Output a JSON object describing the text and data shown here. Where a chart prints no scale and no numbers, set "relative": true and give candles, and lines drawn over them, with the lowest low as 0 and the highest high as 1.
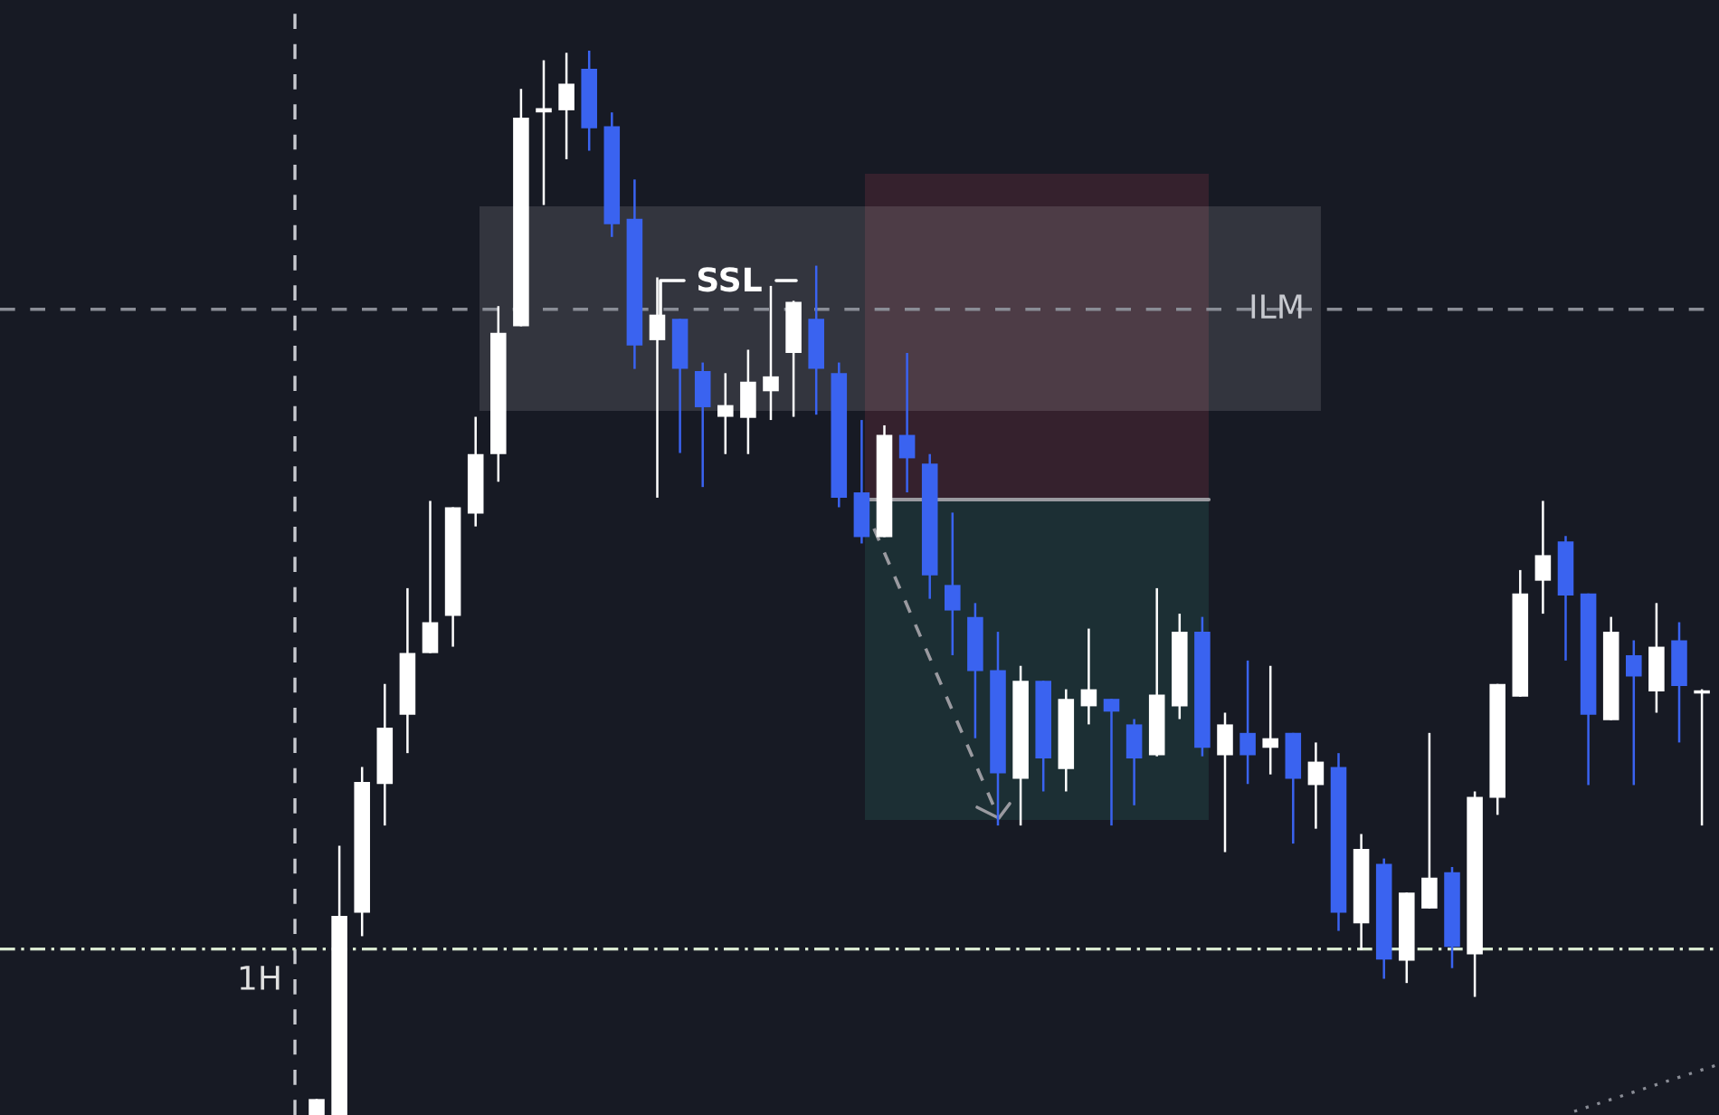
{
  "chart_data": {
    "type": "candlestick",
    "relative": true,
    "categories": [
      null,
      null,
      null,
      null,
      null,
      null,
      null,
      null,
      null,
      null,
      null,
      null,
      null,
      null,
      null,
      null,
      null,
      null,
      null,
      null,
      null,
      null,
      null,
      null,
      null,
      null,
      null,
      null,
      null,
      null,
      null,
      null,
      null,
      null,
      null,
      null,
      null,
      null,
      null,
      null,
      null,
      null,
      null,
      null,
      null,
      null,
      null,
      null,
      null,
      null,
      null,
      null,
      null,
      null,
      null,
      null,
      null,
      null,
      null,
      null,
      null,
      null
    ],
    "ohlc": [
      [
        0,
        0.015,
        0,
        0.015
      ],
      [
        0,
        0.253,
        0,
        0.187
      ],
      [
        0.19,
        0.327,
        0.168,
        0.313
      ],
      [
        0.311,
        0.405,
        0.272,
        0.364
      ],
      [
        0.376,
        0.495,
        0.34,
        0.434
      ],
      [
        0.434,
        0.577,
        0.434,
        0.463
      ],
      [
        0.469,
        0.571,
        0.44,
        0.571
      ],
      [
        0.565,
        0.656,
        0.553,
        0.621
      ],
      [
        0.621,
        0.76,
        0.595,
        0.735
      ],
      [
        0.741,
        0.964,
        0.741,
        0.937
      ],
      [
        0.942,
        0.991,
        0.855,
        0.946
      ],
      [
        0.944,
        0.998,
        0.898,
        0.969
      ],
      [
        0.983,
        1.0,
        0.906,
        0.927
      ],
      [
        0.929,
        0.942,
        0.825,
        0.837
      ],
      [
        0.842,
        0.879,
        0.701,
        0.723
      ],
      [
        0.728,
        0.787,
        0.58,
        0.752
      ],
      [
        0.748,
        0.748,
        0.622,
        0.701
      ],
      [
        0.699,
        0.707,
        0.59,
        0.665
      ],
      [
        0.656,
        0.697,
        0.621,
        0.667
      ],
      [
        0.655,
        0.719,
        0.621,
        0.689
      ],
      [
        0.68,
        0.779,
        0.653,
        0.694
      ],
      [
        0.716,
        0.765,
        0.656,
        0.764
      ],
      [
        0.748,
        0.798,
        0.658,
        0.701
      ],
      [
        0.697,
        0.707,
        0.571,
        0.58
      ],
      [
        0.585,
        0.653,
        0.537,
        0.543
      ],
      [
        0.543,
        0.648,
        0.543,
        0.639
      ],
      [
        0.639,
        0.716,
        0.585,
        0.617
      ],
      [
        0.612,
        0.621,
        0.485,
        0.507
      ],
      [
        0.498,
        0.566,
        0.432,
        0.474
      ],
      [
        0.468,
        0.481,
        0.354,
        0.417
      ],
      [
        0.418,
        0.454,
        0.272,
        0.321
      ],
      [
        0.316,
        0.422,
        0.272,
        0.408
      ],
      [
        0.408,
        0.408,
        0.304,
        0.335
      ],
      [
        0.325,
        0.4,
        0.304,
        0.391
      ],
      [
        0.384,
        0.457,
        0.367,
        0.4
      ],
      [
        0.391,
        0.391,
        0.272,
        0.379
      ],
      [
        0.367,
        0.372,
        0.291,
        0.335
      ],
      [
        0.338,
        0.495,
        0.337,
        0.395
      ],
      [
        0.384,
        0.471,
        0.372,
        0.454
      ],
      [
        0.454,
        0.468,
        0.337,
        0.345
      ],
      [
        0.338,
        0.378,
        0.247,
        0.367
      ],
      [
        0.359,
        0.427,
        0.311,
        0.338
      ],
      [
        0.345,
        0.422,
        0.32,
        0.354
      ],
      [
        0.359,
        0.359,
        0.255,
        0.316
      ],
      [
        0.31,
        0.35,
        0.269,
        0.332
      ],
      [
        0.327,
        0.34,
        0.173,
        0.19
      ],
      [
        0.18,
        0.264,
        0.155,
        0.25
      ],
      [
        0.236,
        0.241,
        0.128,
        0.146
      ],
      [
        0.145,
        0.209,
        0.124,
        0.209
      ],
      [
        0.194,
        0.359,
        0.194,
        0.223
      ],
      [
        0.228,
        0.233,
        0.138,
        0.158
      ],
      [
        0.151,
        0.304,
        0.111,
        0.299
      ],
      [
        0.298,
        0.405,
        0.282,
        0.405
      ],
      [
        0.393,
        0.512,
        0.393,
        0.49
      ],
      [
        0.502,
        0.577,
        0.471,
        0.526
      ],
      [
        0.539,
        0.544,
        0.427,
        0.488
      ],
      [
        0.49,
        0.49,
        0.31,
        0.376
      ],
      [
        0.371,
        0.468,
        0.371,
        0.454
      ],
      [
        0.432,
        0.446,
        0.31,
        0.412
      ],
      [
        0.398,
        0.481,
        0.378,
        0.44
      ],
      [
        0.446,
        0.463,
        0.35,
        0.403
      ],
      [
        0.396,
        0.4,
        0.272,
        0.399
      ]
    ],
    "colors": [
      "#ffffff",
      "#ffffff",
      "#ffffff",
      "#ffffff",
      "#ffffff",
      "#ffffff",
      "#ffffff",
      "#ffffff",
      "#ffffff",
      "#ffffff",
      "#ffffff",
      "#ffffff",
      "#3a63f0",
      "#3a63f0",
      "#3a63f0",
      "#ffffff",
      "#3a63f0",
      "#3a63f0",
      "#ffffff",
      "#ffffff",
      "#ffffff",
      "#ffffff",
      "#3a63f0",
      "#3a63f0",
      "#3a63f0",
      "#ffffff",
      "#3a63f0",
      "#3a63f0",
      "#3a63f0",
      "#3a63f0",
      "#3a63f0",
      "#ffffff",
      "#3a63f0",
      "#ffffff",
      "#ffffff",
      "#3a63f0",
      "#3a63f0",
      "#ffffff",
      "#ffffff",
      "#3a63f0",
      "#ffffff",
      "#3a63f0",
      "#ffffff",
      "#3a63f0",
      "#ffffff",
      "#3a63f0",
      "#ffffff",
      "#3a63f0",
      "#ffffff",
      "#ffffff",
      "#3a63f0",
      "#ffffff",
      "#ffffff",
      "#ffffff",
      "#ffffff",
      "#3a63f0",
      "#3a63f0",
      "#ffffff",
      "#3a63f0",
      "#ffffff",
      "#3a63f0",
      "#ffffff"
    ],
    "ref_lines": [
      {
        "axis": "y",
        "value": 0.757,
        "label": "ILM",
        "color": "#8a8d96",
        "line_style": "dashed"
      },
      {
        "axis": "y",
        "value": 0.156,
        "label": "1H",
        "color": "#d8e8d0",
        "line_style": "dashdot"
      }
    ],
    "annotations": [
      "SSL"
    ]
  }
}
